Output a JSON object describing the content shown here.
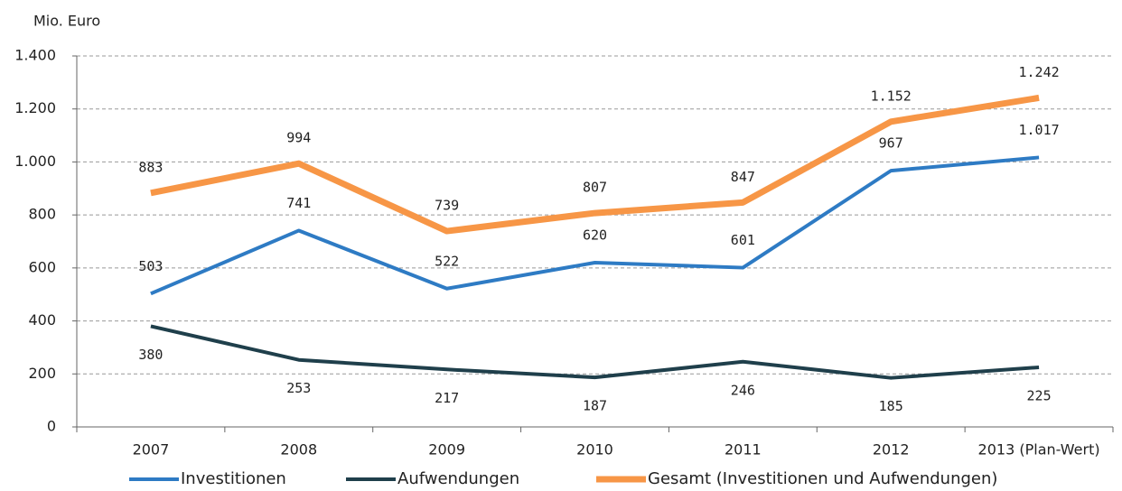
{
  "chart_data": {
    "type": "line",
    "y_axis_label": "Mio. Euro",
    "categories": [
      "2007",
      "2008",
      "2009",
      "2010",
      "2011",
      "2012",
      "2013 (Plan-Wert)"
    ],
    "series": [
      {
        "name": "Investitionen",
        "color": "#2e7bc4",
        "values": [
          503,
          741,
          522,
          620,
          601,
          967,
          1017
        ],
        "value_labels": [
          "503",
          "741",
          "522",
          "620",
          "601",
          "967",
          "1.017"
        ]
      },
      {
        "name": "Aufwendungen",
        "color": "#1f3f4b",
        "values": [
          380,
          253,
          217,
          187,
          246,
          185,
          225
        ]
      },
      {
        "name": "Gesamt (Investitionen und Aufwendungen)",
        "color": "#f79646",
        "values": [
          883,
          994,
          739,
          807,
          847,
          1152,
          1242
        ],
        "value_labels": [
          "883",
          "994",
          "739",
          "807",
          "847",
          "1.152",
          "1.242"
        ]
      }
    ],
    "ylim": [
      0,
      1400
    ],
    "yticks": [
      0,
      200,
      400,
      600,
      800,
      {
        "value": 1000,
        "label": "1.000"
      },
      {
        "value": 1200,
        "label": "1.200"
      },
      {
        "value": 1400,
        "label": "1.400"
      }
    ],
    "grid": true,
    "legend": "bottom"
  }
}
